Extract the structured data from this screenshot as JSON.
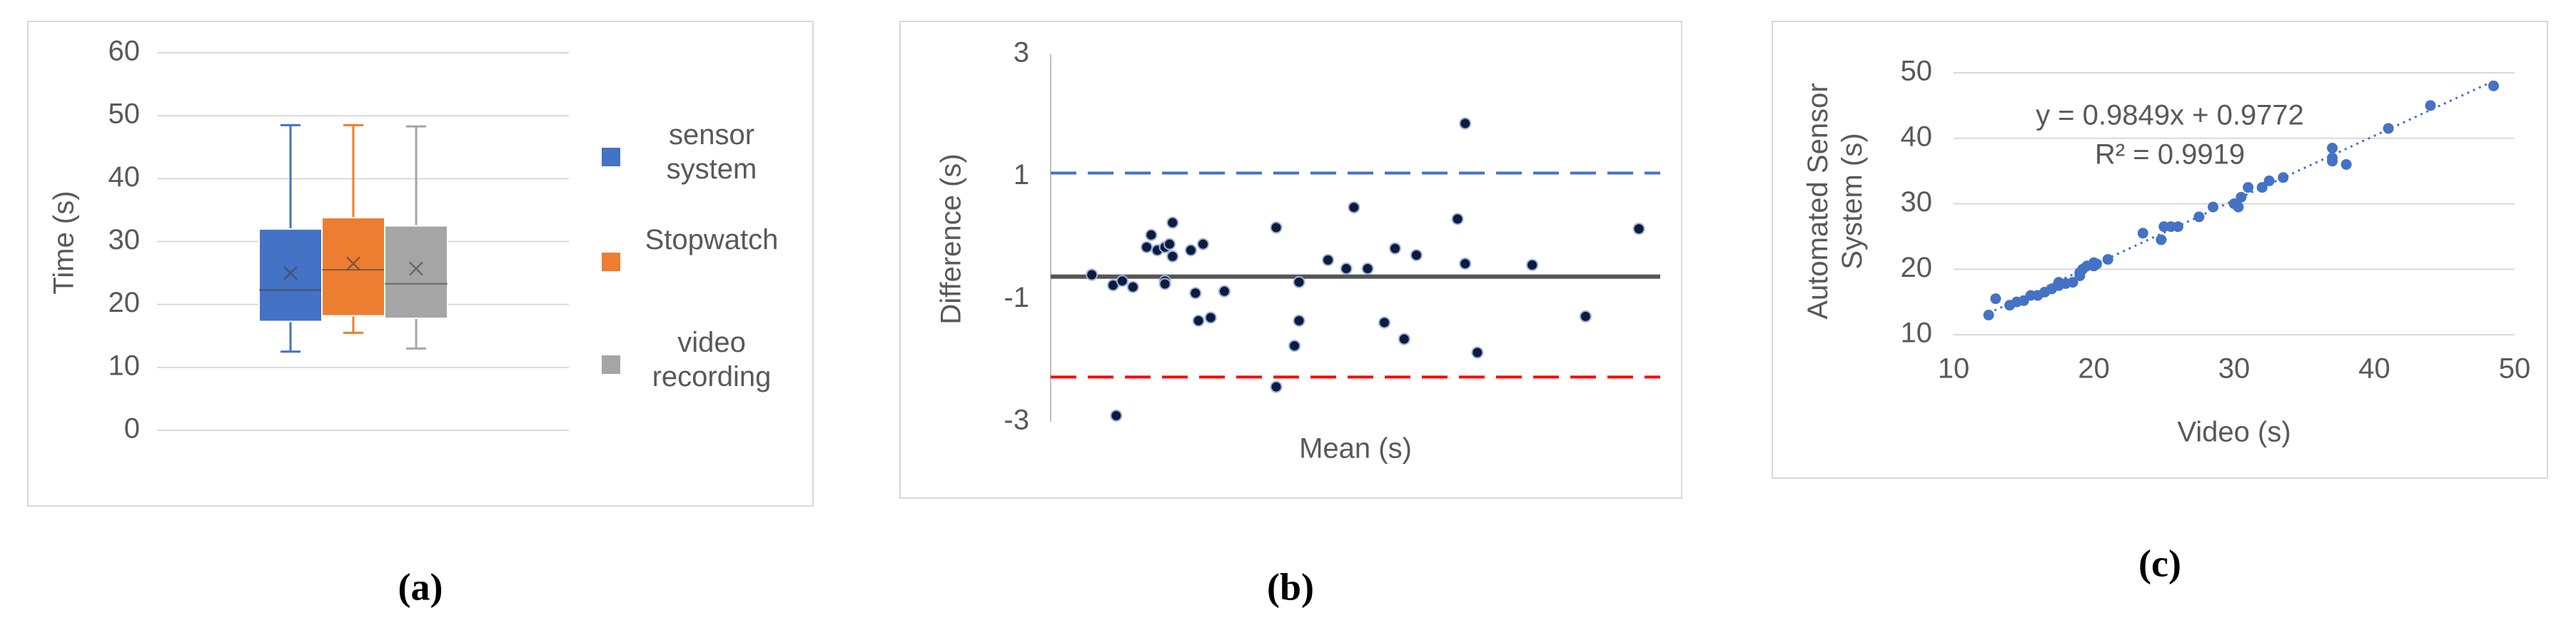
{
  "chart_data": [
    {
      "type": "box",
      "caption": "(a)",
      "ylabel": "Time (s)",
      "ylim": [
        0,
        60
      ],
      "yticks": [
        0,
        10,
        20,
        30,
        40,
        50,
        60
      ],
      "grid": true,
      "legend": "right",
      "series": [
        {
          "name": "sensor system",
          "color": "#4472c4",
          "min": 12.5,
          "q1": 17.3,
          "median": 22.3,
          "q3": 32,
          "max": 48.5,
          "mean": 25
        },
        {
          "name": "Stopwatch",
          "color": "#ed7d31",
          "min": 15.5,
          "q1": 18.2,
          "median": 25.5,
          "q3": 33.8,
          "max": 48.5,
          "mean": 26.5
        },
        {
          "name": "video recording",
          "color": "#a5a5a5",
          "min": 13,
          "q1": 17.8,
          "median": 23.3,
          "q3": 32.5,
          "max": 48.3,
          "mean": 25.7
        }
      ]
    },
    {
      "type": "scatter",
      "caption": "(b)",
      "ylabel": "Difference (s)",
      "xlabel": "Mean (s)",
      "ylim": [
        -3,
        3
      ],
      "yticks": [
        3,
        1,
        -1,
        -3
      ],
      "xlim": [
        10,
        50
      ],
      "color": "#0d1b3e",
      "x": [
        12.7,
        14.1,
        14.7,
        15.4,
        14.3,
        16.3,
        16.6,
        17.0,
        17.5,
        17.8,
        18.0,
        18.0,
        17.5,
        17.5,
        19.2,
        20.0,
        19.5,
        19.7,
        20.5,
        21.4,
        24.8,
        24.8,
        26.3,
        26.0,
        26.3,
        28.2,
        29.4,
        29.9,
        30.8,
        31.9,
        32.6,
        33.2,
        34.0,
        36.7,
        37.2,
        37.2,
        38.0,
        41.6,
        45.1,
        48.6
      ],
      "values": [
        -0.6,
        -0.77,
        -0.7,
        -0.8,
        -2.9,
        -0.15,
        0.05,
        -0.2,
        -0.15,
        -0.1,
        0.25,
        -0.3,
        -0.7,
        -0.75,
        -0.2,
        -0.1,
        -0.9,
        -1.35,
        -1.3,
        -0.87,
        0.17,
        -2.43,
        -1.35,
        -1.76,
        -0.72,
        -0.36,
        -0.5,
        0.5,
        -0.5,
        -1.38,
        -0.17,
        -1.65,
        -0.28,
        0.31,
        1.87,
        -0.42,
        -1.87,
        -0.44,
        -1.28,
        0.15
      ],
      "reference_lines": [
        {
          "value": 1.06,
          "color": "#4472c4",
          "dashed": true
        },
        {
          "value": -0.63,
          "color": "#555555",
          "dashed": false
        },
        {
          "value": -2.27,
          "color": "#ff0000",
          "dashed": true
        }
      ]
    },
    {
      "type": "scatter",
      "caption": "(c)",
      "ylabel": "Automated Sensor System (s)",
      "xlabel": "Video (s)",
      "xlim": [
        10,
        50
      ],
      "xticks": [
        10,
        20,
        30,
        40,
        50
      ],
      "ylim": [
        10,
        50
      ],
      "yticks": [
        10,
        20,
        30,
        40,
        50
      ],
      "grid": true,
      "color": "#4472c4",
      "x": [
        12.5,
        13,
        14,
        14.5,
        15,
        15.5,
        16,
        16.5,
        17,
        17.5,
        17.5,
        18,
        18.5,
        19,
        19,
        19.2,
        19.5,
        20,
        20,
        20.2,
        21,
        23.5,
        24.8,
        25,
        25.5,
        26,
        27.5,
        28.5,
        30,
        30.3,
        30.5,
        31,
        32,
        32.5,
        33.5,
        37,
        37,
        37,
        38,
        41,
        44,
        48.5
      ],
      "values": [
        13,
        15.5,
        14.5,
        15,
        15.2,
        16,
        16,
        16.5,
        17,
        17.5,
        18,
        17.8,
        18,
        19,
        19.5,
        20,
        20.5,
        20.5,
        21,
        20.8,
        21.5,
        25.5,
        24.5,
        26.5,
        26.5,
        26.5,
        28,
        29.5,
        30,
        29.5,
        31,
        32.5,
        32.5,
        33.5,
        34,
        36.5,
        37,
        38.5,
        36,
        41.5,
        45,
        48
      ],
      "trendline": {
        "slope": 0.9849,
        "intercept": 0.9772,
        "label": "y = 0.9849x + 0.9772",
        "r2": 0.9919,
        "r2_label": "R² = 0.9919"
      }
    }
  ]
}
